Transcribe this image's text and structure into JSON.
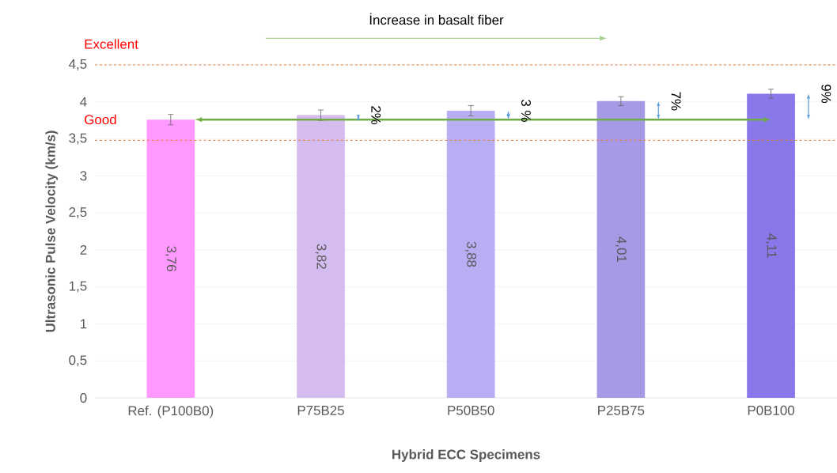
{
  "chart_data": {
    "type": "bar",
    "xlabel": "Hybrid ECC Specimens",
    "ylabel": "Ultrasonic Pulse Velocity (km/s)",
    "categories": [
      "Ref. (P100B0)",
      "P75B25",
      "P50B50",
      "P25B75",
      "P0B100"
    ],
    "values": [
      3.76,
      3.82,
      3.88,
      4.01,
      4.11
    ],
    "colors": [
      "#ff99ff",
      "#d4bcf0",
      "#b8aef4",
      "#a69ae6",
      "#8878ea"
    ],
    "errors": [
      0.07,
      0.07,
      0.07,
      0.06,
      0.06
    ],
    "value_labels": [
      "3,76",
      "3,82",
      "3,88",
      "4,01",
      "4,11"
    ],
    "ylim": [
      0,
      4.5
    ],
    "yticks": [
      0,
      {
        "value": 0.5,
        "label": "0,5"
      },
      1,
      {
        "value": 1.5,
        "label": "1,5"
      },
      2,
      {
        "value": 2.5,
        "label": "2,5"
      },
      3,
      {
        "value": 3.5,
        "label": "3,5"
      },
      4,
      {
        "value": 4.5,
        "label": "4,5"
      }
    ],
    "grid": "y",
    "ref_lines": [
      {
        "axis": "y",
        "value": 4.5,
        "label": "Excellent",
        "color": "#ed7d31",
        "line_style": "dashed"
      },
      {
        "axis": "y",
        "value": 3.48,
        "label": "Good",
        "color": "#ed7d31",
        "line_style": "dashed"
      },
      {
        "axis": "y",
        "value": 3.76,
        "color": "#70ad47",
        "line_style": "solid"
      }
    ],
    "annotations": [
      "İncrease in basalt fiber",
      "2%",
      "3 %",
      "7%",
      "9%"
    ]
  }
}
